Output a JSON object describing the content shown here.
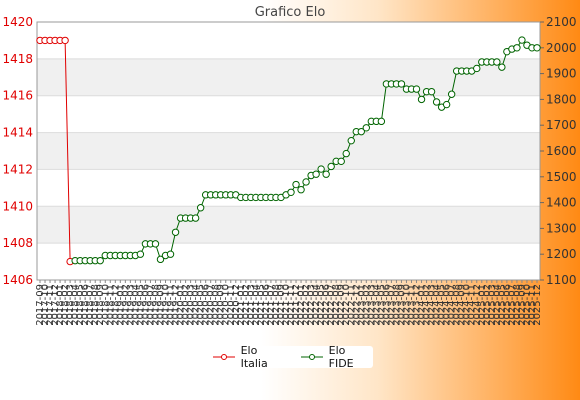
{
  "chart_data": {
    "type": "line",
    "title": "Grafico Elo",
    "left_axis": {
      "ticks": [
        "1420",
        "1418",
        "1416",
        "1414",
        "1412",
        "1410",
        "1408",
        "1406"
      ],
      "range": [
        1406,
        1420
      ],
      "color": "#e00000"
    },
    "right_axis": {
      "ticks": [
        "2100",
        "2000",
        "1900",
        "1800",
        "1700",
        "1600",
        "1500",
        "1400",
        "1300",
        "1200",
        "1100"
      ],
      "range": [
        1100,
        2100
      ]
    },
    "x_labels": [
      "2017-09",
      "2017-10",
      "2017-11",
      "2017-12",
      "2018-01",
      "2018-02",
      "2018-03",
      "2018-04",
      "2018-05",
      "2018-06",
      "2018-07",
      "2018-08",
      "2018-09",
      "2018-10",
      "2018-11",
      "2018-12",
      "2019-01",
      "2019-02",
      "2019-03",
      "2019-04",
      "2019-05",
      "2019-06",
      "2019-07",
      "2019-08",
      "2019-09",
      "2019-10",
      "2019-11",
      "2019-12",
      "2020-01",
      "2020-02",
      "2020-03",
      "2020-04",
      "2020-05",
      "2020-06",
      "2020-07",
      "2020-08",
      "2020-09",
      "2020-10",
      "2020-11",
      "2020-12",
      "2021-01",
      "2021-02",
      "2021-03",
      "2021-04",
      "2021-05",
      "2021-06",
      "2021-07",
      "2021-08",
      "2021-09",
      "2021-10",
      "2021-11",
      "2021-12",
      "2022-01",
      "2022-02",
      "2022-03",
      "2022-04",
      "2022-05",
      "2022-06",
      "2022-07",
      "2022-08",
      "2022-09",
      "2022-10",
      "2022-11",
      "2022-12",
      "2023-01",
      "2023-02",
      "2023-03",
      "2023-04",
      "2023-05",
      "2023-06",
      "2023-07",
      "2023-08",
      "2023-09",
      "2023-10",
      "2023-11",
      "2023-12",
      "2024-01",
      "2024-02",
      "2024-03",
      "2024-04",
      "2024-05",
      "2024-06",
      "2024-07",
      "2024-08",
      "2024-09",
      "2024-10",
      "2024-11",
      "2024-12",
      "2025-01",
      "2025-02",
      "2025-03",
      "2025-04",
      "2025-05",
      "2025-06",
      "2025-07",
      "2025-08",
      "2025-09",
      "2025-10",
      "2025-11",
      "2025-12"
    ],
    "series": [
      {
        "name": "Elo Italia",
        "axis": "left",
        "color": "#e00000",
        "values": [
          1419,
          1419,
          1419,
          1419,
          1419,
          1419,
          1407,
          null,
          null,
          null,
          null,
          null,
          null,
          null,
          null,
          null,
          null,
          null,
          null,
          null,
          null,
          null,
          null,
          null,
          null,
          null,
          null,
          null,
          null,
          null,
          null,
          null,
          null,
          null,
          null,
          null,
          null,
          null,
          null,
          null,
          null,
          null,
          null,
          null,
          null,
          null,
          null,
          null,
          null,
          null,
          null,
          null,
          null,
          null,
          null,
          null,
          null,
          null,
          null,
          null,
          null,
          null,
          null,
          null,
          null,
          null,
          null,
          null,
          null,
          null,
          null,
          null,
          null,
          null,
          null,
          null,
          null,
          null,
          null,
          null,
          null,
          null,
          null,
          null,
          null,
          null,
          null,
          null,
          null,
          null,
          null,
          null,
          null,
          null,
          null,
          null,
          null,
          null,
          null,
          null
        ]
      },
      {
        "name": "Elo FIDE",
        "axis": "right",
        "color": "#006400",
        "values": [
          null,
          null,
          null,
          null,
          null,
          null,
          null,
          1175,
          1175,
          1175,
          1175,
          1175,
          1175,
          1195,
          1195,
          1195,
          1195,
          1195,
          1195,
          1195,
          1200,
          1240,
          1240,
          1240,
          1180,
          1195,
          1200,
          1285,
          1340,
          1340,
          1340,
          1340,
          1380,
          1430,
          1430,
          1430,
          1430,
          1430,
          1430,
          1430,
          1420,
          1420,
          1420,
          1420,
          1420,
          1420,
          1420,
          1420,
          1420,
          1430,
          1440,
          1470,
          1450,
          1480,
          1505,
          1510,
          1530,
          1510,
          1540,
          1560,
          1560,
          1590,
          1640,
          1675,
          1675,
          1690,
          1715,
          1715,
          1715,
          1860,
          1860,
          1860,
          1860,
          1840,
          1840,
          1840,
          1800,
          1830,
          1830,
          1790,
          1770,
          1780,
          1820,
          1910,
          1910,
          1910,
          1910,
          1920,
          1945,
          1945,
          1945,
          1945,
          1925,
          1985,
          1995,
          2000,
          2030,
          2010,
          2000,
          2000
        ]
      }
    ],
    "grid": true,
    "legend": "bottom-center"
  }
}
